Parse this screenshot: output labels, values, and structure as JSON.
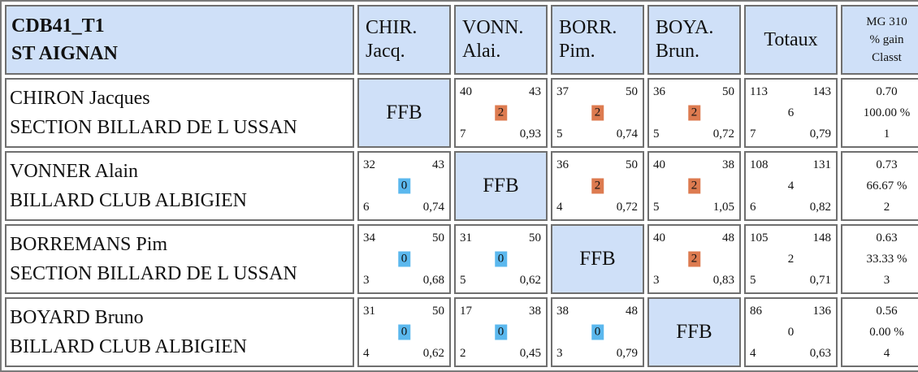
{
  "header": {
    "title_line1": "CDB41_T1",
    "title_line2": "ST AIGNAN",
    "columns": [
      {
        "line1": "CHIR.",
        "line2": "Jacq."
      },
      {
        "line1": "VONN.",
        "line2": "Alai."
      },
      {
        "line1": "BORR.",
        "line2": "Pim."
      },
      {
        "line1": "BOYA.",
        "line2": "Brun."
      }
    ],
    "totaux": "Totaux",
    "mg_line1": "MG 310",
    "mg_line2": "% gain",
    "mg_line3": "Classt"
  },
  "ffb_label": "FFB",
  "colors": {
    "header_bg": "#cfe0f8",
    "win_badge": "#dd7b50",
    "loss_badge": "#5bb8ee"
  },
  "rows": [
    {
      "name": "CHIRON Jacques",
      "club": "SECTION BILLARD DE L USSAN",
      "cells": [
        null,
        {
          "pts": "40",
          "dist": "43",
          "res": "2",
          "result": "win",
          "rep": "7",
          "moy": "0,93"
        },
        {
          "pts": "37",
          "dist": "50",
          "res": "2",
          "result": "win",
          "rep": "5",
          "moy": "0,74"
        },
        {
          "pts": "36",
          "dist": "50",
          "res": "2",
          "result": "win",
          "rep": "5",
          "moy": "0,72"
        }
      ],
      "totals": {
        "pts": "113",
        "dist": "143",
        "res": "6",
        "rep": "7",
        "moy": "0,79"
      },
      "mg": {
        "moyenne": "0.70",
        "gain": "100.00 %",
        "classt": "1"
      }
    },
    {
      "name": "VONNER Alain",
      "club": "BILLARD CLUB ALBIGIEN",
      "cells": [
        {
          "pts": "32",
          "dist": "43",
          "res": "0",
          "result": "loss",
          "rep": "6",
          "moy": "0,74"
        },
        null,
        {
          "pts": "36",
          "dist": "50",
          "res": "2",
          "result": "win",
          "rep": "4",
          "moy": "0,72"
        },
        {
          "pts": "40",
          "dist": "38",
          "res": "2",
          "result": "win",
          "rep": "5",
          "moy": "1,05"
        }
      ],
      "totals": {
        "pts": "108",
        "dist": "131",
        "res": "4",
        "rep": "6",
        "moy": "0,82"
      },
      "mg": {
        "moyenne": "0.73",
        "gain": "66.67 %",
        "classt": "2"
      }
    },
    {
      "name": "BORREMANS Pim",
      "club": "SECTION BILLARD DE L USSAN",
      "cells": [
        {
          "pts": "34",
          "dist": "50",
          "res": "0",
          "result": "loss",
          "rep": "3",
          "moy": "0,68"
        },
        {
          "pts": "31",
          "dist": "50",
          "res": "0",
          "result": "loss",
          "rep": "5",
          "moy": "0,62"
        },
        null,
        {
          "pts": "40",
          "dist": "48",
          "res": "2",
          "result": "win",
          "rep": "3",
          "moy": "0,83"
        }
      ],
      "totals": {
        "pts": "105",
        "dist": "148",
        "res": "2",
        "rep": "5",
        "moy": "0,71"
      },
      "mg": {
        "moyenne": "0.63",
        "gain": "33.33 %",
        "classt": "3"
      }
    },
    {
      "name": "BOYARD Bruno",
      "club": "BILLARD CLUB ALBIGIEN",
      "cells": [
        {
          "pts": "31",
          "dist": "50",
          "res": "0",
          "result": "loss",
          "rep": "4",
          "moy": "0,62"
        },
        {
          "pts": "17",
          "dist": "38",
          "res": "0",
          "result": "loss",
          "rep": "2",
          "moy": "0,45"
        },
        {
          "pts": "38",
          "dist": "48",
          "res": "0",
          "result": "loss",
          "rep": "3",
          "moy": "0,79"
        },
        null
      ],
      "totals": {
        "pts": "86",
        "dist": "136",
        "res": "0",
        "rep": "4",
        "moy": "0,63"
      },
      "mg": {
        "moyenne": "0.56",
        "gain": "0.00 %",
        "classt": "4"
      }
    }
  ]
}
